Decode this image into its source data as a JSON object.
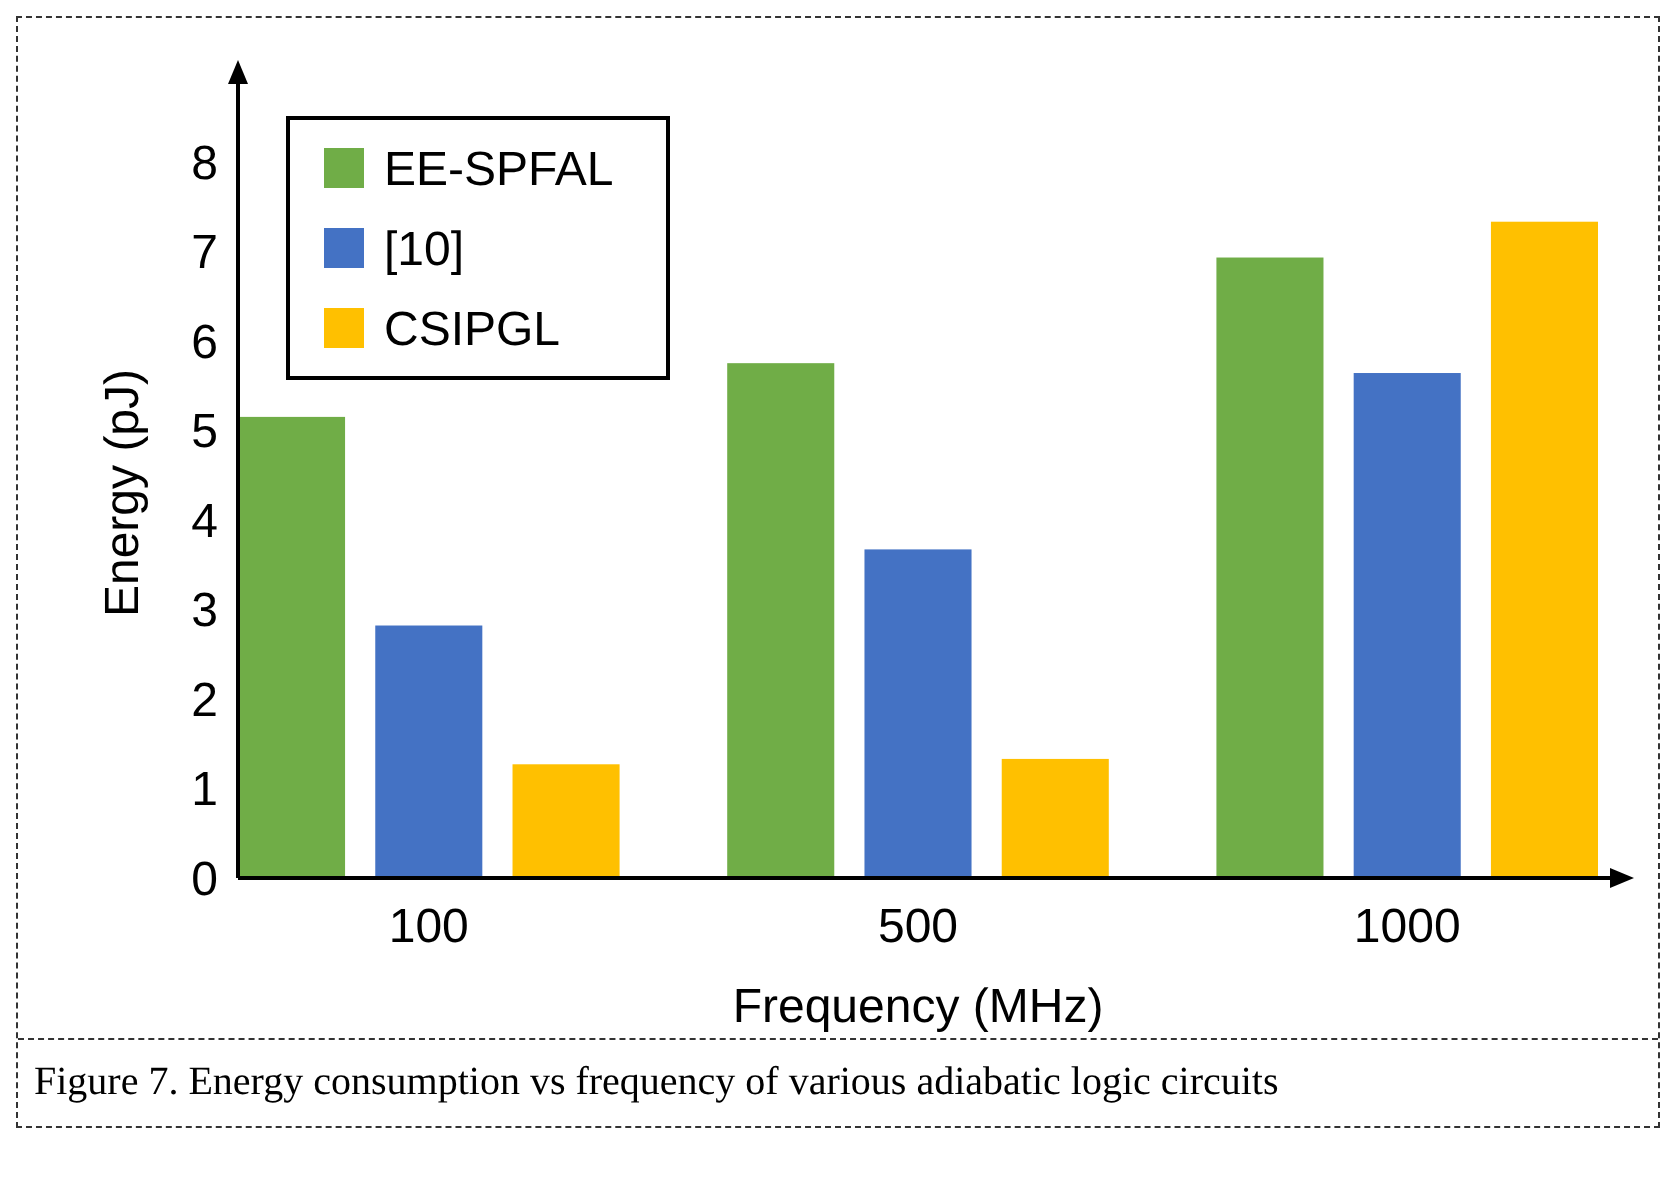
{
  "chart_data": {
    "type": "bar",
    "xlabel": "Frequency (MHz)",
    "ylabel": "Energy (pJ)",
    "categories": [
      "100",
      "500",
      "1000"
    ],
    "series": [
      {
        "name": "EE-SPFAL",
        "color": "#70ad47",
        "values": [
          5.15,
          5.75,
          6.93
        ]
      },
      {
        "name": "[10]",
        "color": "#4472c4",
        "values": [
          2.82,
          3.67,
          5.64
        ]
      },
      {
        "name": "CSIPGL",
        "color": "#ffc000",
        "values": [
          1.27,
          1.33,
          7.33
        ]
      }
    ],
    "ylim": [
      0,
      8.6
    ],
    "yticks": [
      0,
      1,
      2,
      3,
      4,
      5,
      6,
      7,
      8
    ],
    "grid": false,
    "legend": "top left",
    "annotations": [
      "Figure 7. Energy consumption vs frequency of various adiabatic logic circuits"
    ]
  }
}
